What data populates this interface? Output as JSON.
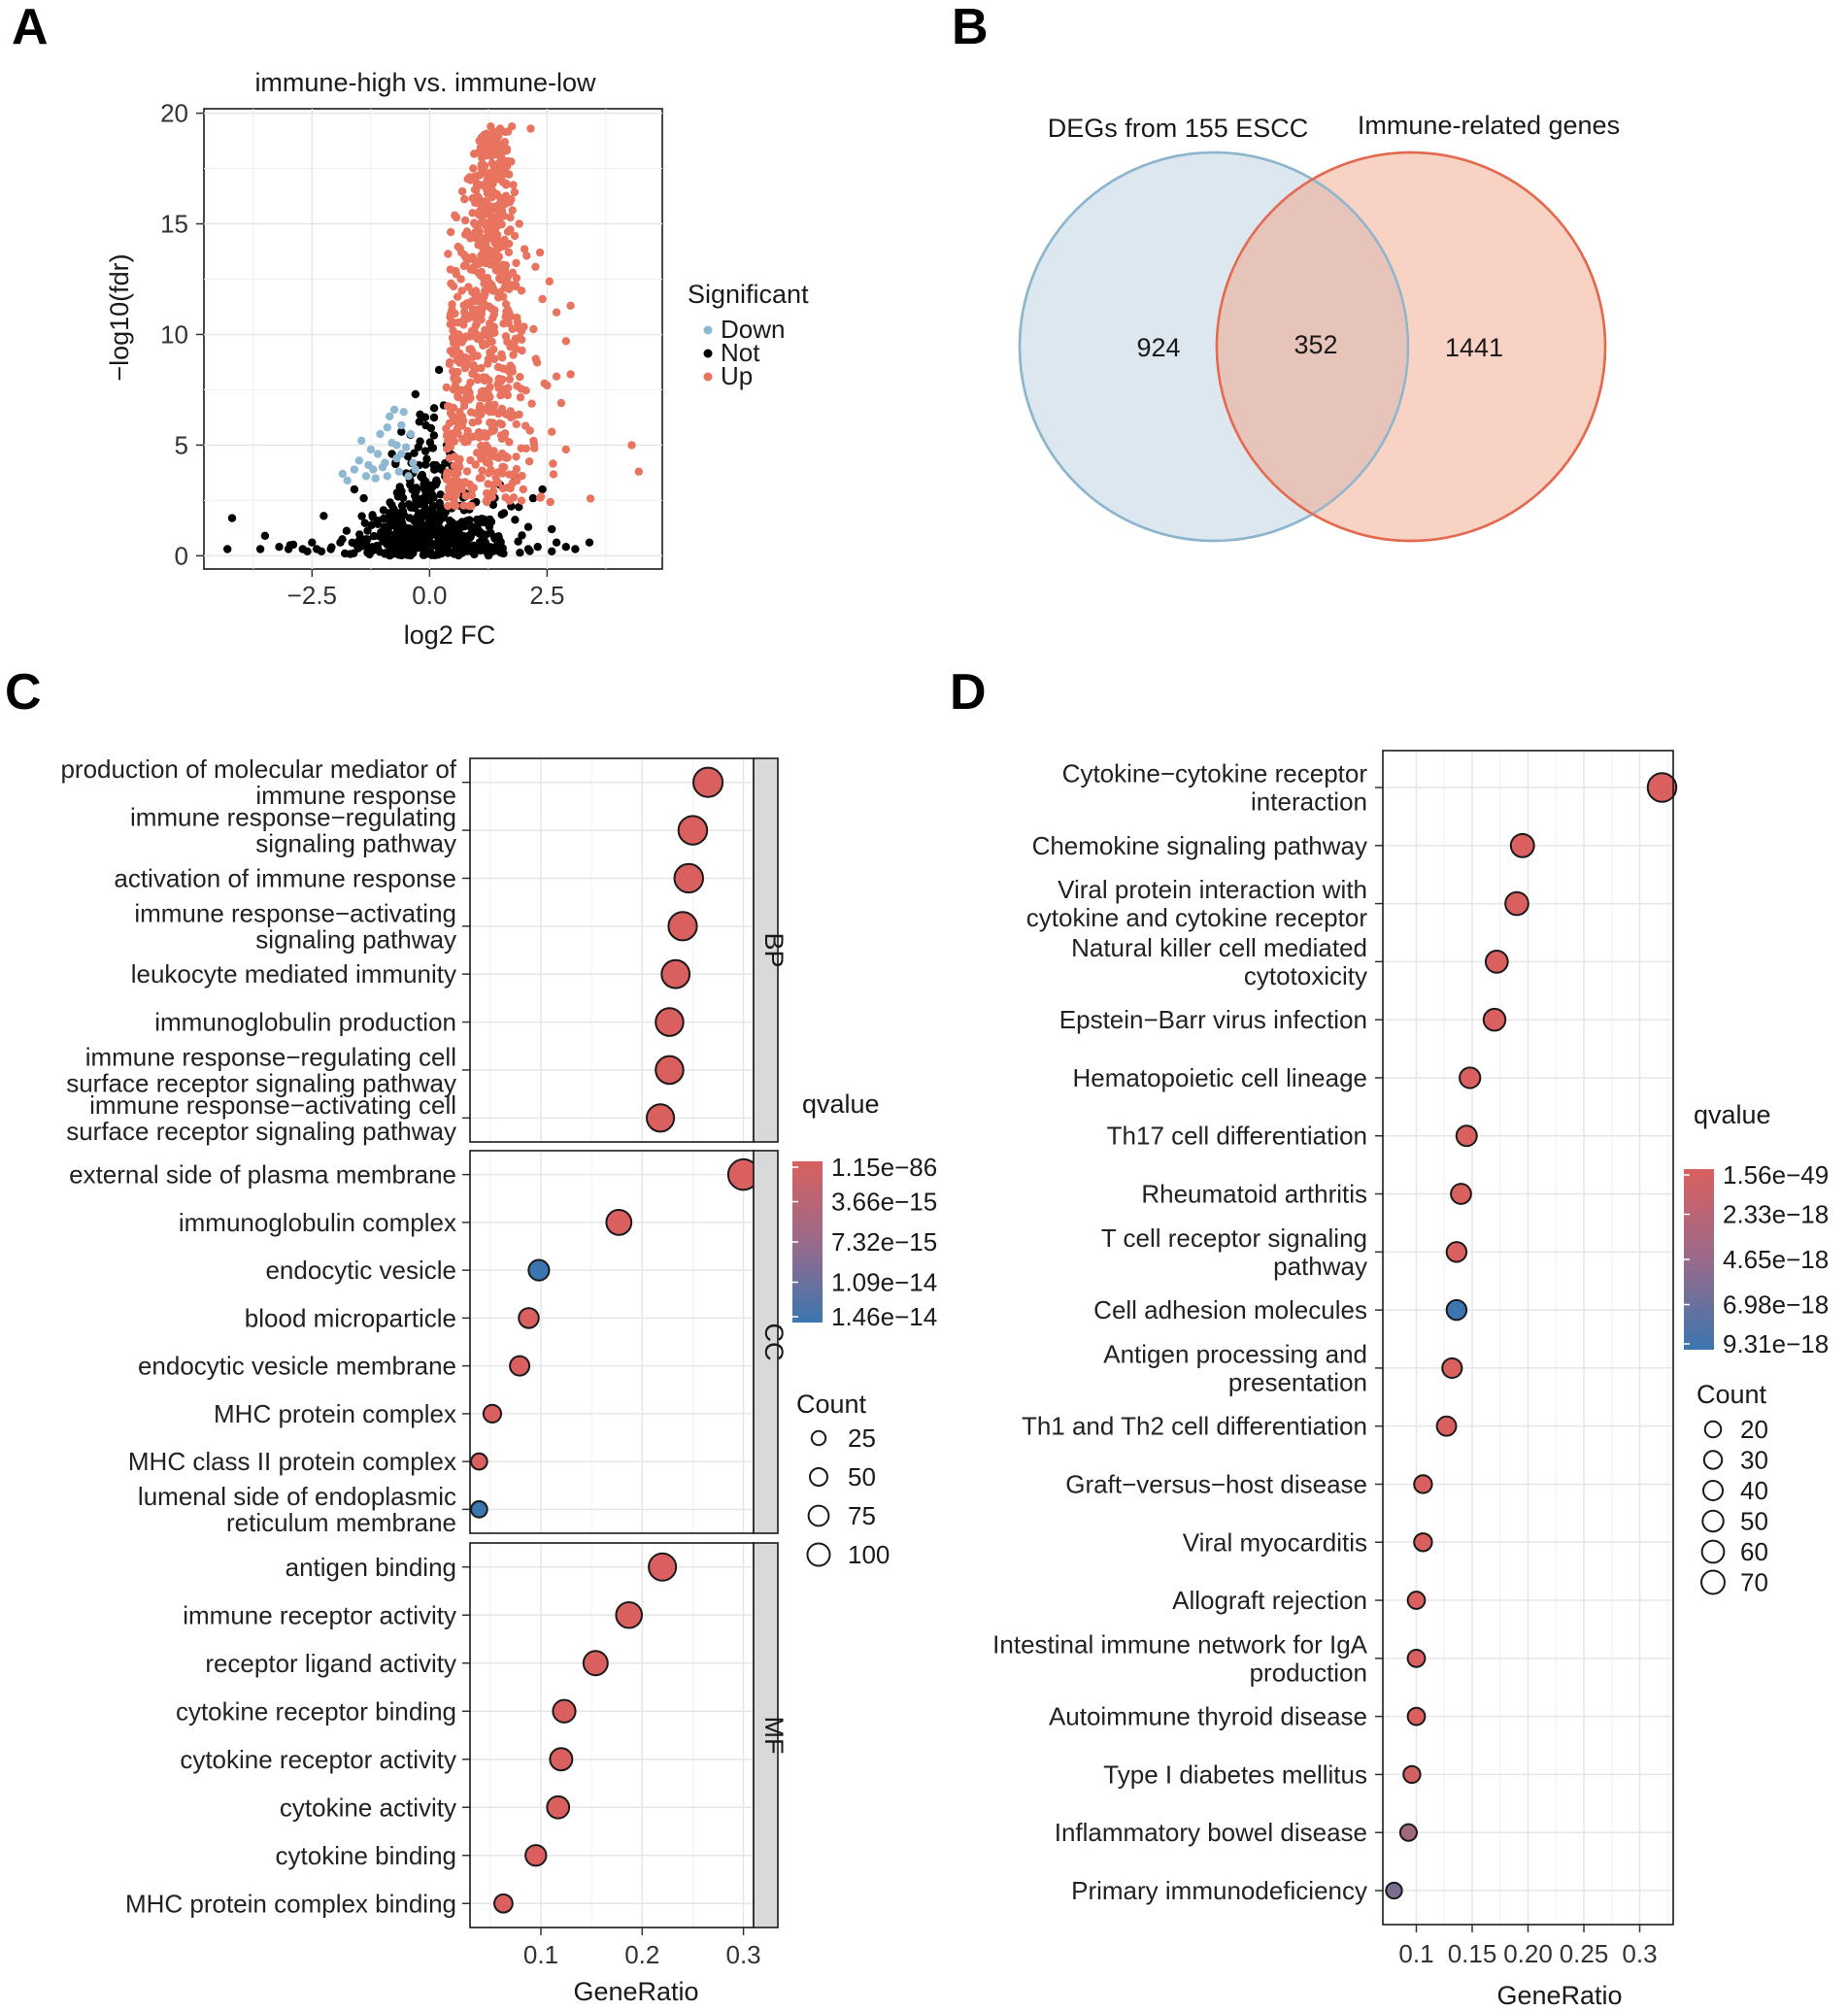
{
  "colors": {
    "up": "#E8735F",
    "down": "#8FB8D2",
    "not": "#000000",
    "q_high": "#D9605F",
    "q_low": "#3B76B0",
    "venn_left_fill": "#DCE7EF",
    "venn_left_stroke": "#8DB6CE",
    "venn_right_fill": "#F8D3C4",
    "venn_right_stroke": "#E3694F",
    "venn_overlap_fill": "#E6C4B9",
    "strip": "#D9D9D9",
    "grid": "#E6E6E6"
  },
  "panels": {
    "a": "A",
    "b": "B",
    "c": "C",
    "d": "D"
  },
  "chart_data": [
    {
      "id": "A",
      "type": "scatter",
      "title": "immune-high vs. immune-low",
      "xlabel": "log2 FC",
      "ylabel": "−log10(fdr)",
      "xlim": [
        -4.8,
        4.95
      ],
      "ylim": [
        -0.6,
        20.2
      ],
      "xticks": [
        -2.5,
        0.0,
        2.5
      ],
      "xtick_labels": [
        "−2.5",
        "0.0",
        "2.5"
      ],
      "yticks": [
        0,
        5,
        10,
        15,
        20
      ],
      "legend": {
        "title": "Significant",
        "entries": [
          "Down",
          "Not",
          "Up"
        ]
      },
      "series": [
        {
          "name": "Not",
          "points": [
            [
              -4.3,
              0.3
            ],
            [
              -4.2,
              1.7
            ],
            [
              -3.6,
              0.3
            ],
            [
              -3.5,
              0.9
            ],
            [
              -3.2,
              0.4
            ],
            [
              -3.0,
              0.3
            ],
            [
              -2.9,
              0.5
            ],
            [
              -2.7,
              0.3
            ],
            [
              -2.6,
              0.2
            ],
            [
              -2.5,
              0.6
            ],
            [
              -2.4,
              0.3
            ],
            [
              -2.3,
              0.2
            ],
            [
              -2.25,
              1.8
            ],
            [
              -2.1,
              0.3
            ],
            [
              -1.9,
              0.6
            ],
            [
              -1.8,
              0.1
            ],
            [
              2.1,
              0.3
            ],
            [
              2.3,
              0.4
            ],
            [
              2.6,
              0.2
            ],
            [
              2.7,
              0.6
            ],
            [
              2.9,
              0.4
            ],
            [
              3.1,
              0.3
            ],
            [
              3.4,
              0.6
            ],
            [
              2.4,
              3.0
            ],
            [
              2.2,
              2.6
            ],
            [
              1.8,
              3.6
            ],
            [
              1.5,
              3.2
            ],
            [
              1.9,
              2.2
            ],
            [
              2.1,
              1.3
            ],
            [
              2.6,
              1.2
            ],
            [
              -1.6,
              3.0
            ],
            [
              -1.4,
              2.6
            ],
            [
              -0.3,
              7.3
            ],
            [
              -0.6,
              5.6
            ],
            [
              -0.8,
              4.6
            ],
            [
              0.2,
              8.4
            ],
            [
              0.3,
              6.8
            ]
          ],
          "cloud": {
            "center": [
              0.05,
              1.2
            ],
            "spread": [
              0.75,
              1.6
            ],
            "count": 520
          }
        },
        {
          "name": "Down",
          "points": [
            [
              -1.85,
              3.7
            ],
            [
              -1.75,
              3.4
            ],
            [
              -1.6,
              3.9
            ],
            [
              -1.5,
              4.3
            ],
            [
              -1.35,
              3.6
            ],
            [
              -1.25,
              4.8
            ],
            [
              -1.2,
              3.9
            ],
            [
              -1.1,
              4.6
            ],
            [
              -1.05,
              5.5
            ],
            [
              -0.95,
              4.2
            ],
            [
              -0.9,
              3.6
            ],
            [
              -0.85,
              6.3
            ],
            [
              -0.8,
              5.1
            ],
            [
              -0.75,
              6.6
            ],
            [
              -0.7,
              4.4
            ],
            [
              -0.65,
              3.8
            ],
            [
              -0.6,
              5.9
            ],
            [
              -0.55,
              6.5
            ],
            [
              -0.5,
              4.9
            ],
            [
              -0.45,
              3.6
            ],
            [
              -0.4,
              5.5
            ],
            [
              -0.35,
              4.2
            ],
            [
              -0.3,
              3.9
            ],
            [
              -1.45,
              5.2
            ],
            [
              -1.0,
              4.0
            ],
            [
              -0.7,
              5.0
            ],
            [
              -1.3,
              4.1
            ],
            [
              -0.9,
              5.8
            ],
            [
              -0.6,
              4.6
            ],
            [
              -1.15,
              3.5
            ]
          ]
        },
        {
          "name": "Up",
          "points": [
            [
              4.3,
              5.0
            ],
            [
              4.45,
              3.8
            ],
            [
              1.3,
              19.4
            ],
            [
              1.5,
              19.3
            ],
            [
              2.15,
              19.3
            ],
            [
              1.75,
              19.4
            ],
            [
              1.2,
              18.8
            ],
            [
              1.6,
              18.7
            ],
            [
              2.4,
              11.6
            ],
            [
              2.7,
              11.0
            ],
            [
              2.9,
              9.7
            ],
            [
              3.0,
              8.2
            ],
            [
              2.8,
              6.9
            ],
            [
              2.6,
              5.6
            ],
            [
              2.9,
              4.8
            ],
            [
              2.35,
              13.7
            ],
            [
              2.55,
              12.4
            ],
            [
              2.5,
              7.7
            ],
            [
              2.7,
              8.1
            ],
            [
              3.0,
              11.3
            ]
          ],
          "cloud": {
            "center": [
              1.4,
              10.0
            ],
            "spread": [
              0.55,
              4.8
            ],
            "count": 760
          }
        }
      ]
    },
    {
      "id": "B",
      "type": "venn",
      "sets": [
        {
          "name": "DEGs from 155 ESCC",
          "only": "924"
        },
        {
          "name": "Immune-related genes",
          "only": "1441"
        }
      ],
      "intersection": "352"
    },
    {
      "id": "C",
      "type": "dot",
      "xlabel": "GeneRatio",
      "xlim": [
        0.03,
        0.31
      ],
      "xticks": [
        0.1,
        0.2,
        0.3
      ],
      "xtick_labels": [
        "0.1",
        "0.2",
        "0.3"
      ],
      "color_legend": {
        "title": "qvalue",
        "labels": [
          "1.15e−86",
          "3.66e−15",
          "7.32e−15",
          "1.09e−14",
          "1.46e−14"
        ]
      },
      "size_legend": {
        "title": "Count",
        "values": [
          25,
          50,
          75,
          100
        ],
        "labels": [
          "25",
          "50",
          "75",
          "100"
        ]
      },
      "facets": [
        {
          "name": "BP",
          "terms": [
            {
              "label": [
                "production of molecular mediator of",
                "immune response"
              ],
              "ratio": 0.265,
              "count": 85,
              "q": 0.0
            },
            {
              "label": [
                "immune response−regulating",
                "signaling pathway"
              ],
              "ratio": 0.25,
              "count": 80,
              "q": 0.0
            },
            {
              "label": [
                "activation of immune response"
              ],
              "ratio": 0.246,
              "count": 80,
              "q": 0.0
            },
            {
              "label": [
                "immune response−activating",
                "signaling pathway"
              ],
              "ratio": 0.24,
              "count": 78,
              "q": 0.0
            },
            {
              "label": [
                "leukocyte mediated immunity"
              ],
              "ratio": 0.233,
              "count": 75,
              "q": 0.0
            },
            {
              "label": [
                "immunoglobulin production"
              ],
              "ratio": 0.227,
              "count": 73,
              "q": 0.0
            },
            {
              "label": [
                "immune response−regulating cell",
                "surface receptor signaling pathway"
              ],
              "ratio": 0.227,
              "count": 73,
              "q": 0.0
            },
            {
              "label": [
                "immune response−activating cell",
                "surface receptor signaling pathway"
              ],
              "ratio": 0.218,
              "count": 70,
              "q": 0.0
            }
          ]
        },
        {
          "name": "CC",
          "terms": [
            {
              "label": [
                "external side of plasma membrane"
              ],
              "ratio": 0.3,
              "count": 95,
              "q": 0.0
            },
            {
              "label": [
                "immunoglobulin complex"
              ],
              "ratio": 0.177,
              "count": 55,
              "q": 0.0
            },
            {
              "label": [
                "endocytic vesicle"
              ],
              "ratio": 0.098,
              "count": 30,
              "q": 1.0
            },
            {
              "label": [
                "blood microparticle"
              ],
              "ratio": 0.088,
              "count": 27,
              "q": 0.0
            },
            {
              "label": [
                "endocytic vesicle membrane"
              ],
              "ratio": 0.079,
              "count": 25,
              "q": 0.0
            },
            {
              "label": [
                "MHC protein complex"
              ],
              "ratio": 0.052,
              "count": 18,
              "q": 0.0
            },
            {
              "label": [
                "MHC class II protein complex"
              ],
              "ratio": 0.039,
              "count": 13,
              "q": 0.0
            },
            {
              "label": [
                "lumenal side of endoplasmic",
                "reticulum membrane"
              ],
              "ratio": 0.039,
              "count": 13,
              "q": 1.0
            }
          ]
        },
        {
          "name": "MF",
          "terms": [
            {
              "label": [
                "antigen binding"
              ],
              "ratio": 0.22,
              "count": 70,
              "q": 0.0
            },
            {
              "label": [
                "immune receptor activity"
              ],
              "ratio": 0.187,
              "count": 60,
              "q": 0.0
            },
            {
              "label": [
                "receptor ligand activity"
              ],
              "ratio": 0.154,
              "count": 50,
              "q": 0.0
            },
            {
              "label": [
                "cytokine receptor binding"
              ],
              "ratio": 0.123,
              "count": 40,
              "q": 0.0
            },
            {
              "label": [
                "cytokine receptor activity"
              ],
              "ratio": 0.12,
              "count": 39,
              "q": 0.0
            },
            {
              "label": [
                "cytokine activity"
              ],
              "ratio": 0.117,
              "count": 38,
              "q": 0.0
            },
            {
              "label": [
                "cytokine binding"
              ],
              "ratio": 0.095,
              "count": 31,
              "q": 0.0
            },
            {
              "label": [
                "MHC protein complex binding"
              ],
              "ratio": 0.063,
              "count": 20,
              "q": 0.0
            }
          ]
        }
      ]
    },
    {
      "id": "D",
      "type": "dot",
      "xlabel": "GeneRatio",
      "xlim": [
        0.07,
        0.33
      ],
      "xticks": [
        0.1,
        0.15,
        0.2,
        0.25,
        0.3
      ],
      "xtick_labels": [
        "0.1",
        "0.15",
        "0.20",
        "0.25",
        "0.3"
      ],
      "color_legend": {
        "title": "qvalue",
        "labels": [
          "1.56e−49",
          "2.33e−18",
          "4.65e−18",
          "6.98e−18",
          "9.31e−18"
        ]
      },
      "size_legend": {
        "title": "Count",
        "values": [
          20,
          30,
          40,
          50,
          60,
          70
        ],
        "labels": [
          "20",
          "30",
          "40",
          "50",
          "60",
          "70"
        ]
      },
      "terms": [
        {
          "label": [
            "Cytokine−cytokine receptor",
            "interaction"
          ],
          "ratio": 0.32,
          "count": 72,
          "q": 0.0
        },
        {
          "label": [
            "Chemokine signaling pathway"
          ],
          "ratio": 0.195,
          "count": 44,
          "q": 0.0
        },
        {
          "label": [
            "Viral protein interaction with",
            "cytokine and cytokine receptor"
          ],
          "ratio": 0.19,
          "count": 43,
          "q": 0.0
        },
        {
          "label": [
            "Natural killer cell mediated",
            "cytotoxicity"
          ],
          "ratio": 0.172,
          "count": 39,
          "q": 0.0
        },
        {
          "label": [
            "Epstein−Barr virus infection"
          ],
          "ratio": 0.17,
          "count": 38,
          "q": 0.0
        },
        {
          "label": [
            "Hematopoietic cell lineage"
          ],
          "ratio": 0.148,
          "count": 33,
          "q": 0.0
        },
        {
          "label": [
            "Th17 cell differentiation"
          ],
          "ratio": 0.145,
          "count": 32,
          "q": 0.0
        },
        {
          "label": [
            "Rheumatoid arthritis"
          ],
          "ratio": 0.14,
          "count": 31,
          "q": 0.0
        },
        {
          "label": [
            "T cell receptor signaling",
            "pathway"
          ],
          "ratio": 0.136,
          "count": 30,
          "q": 0.0
        },
        {
          "label": [
            "Cell adhesion molecules"
          ],
          "ratio": 0.136,
          "count": 30,
          "q": 1.0
        },
        {
          "label": [
            "Antigen processing and",
            "presentation"
          ],
          "ratio": 0.132,
          "count": 29,
          "q": 0.0
        },
        {
          "label": [
            "Th1 and Th2 cell differentiation"
          ],
          "ratio": 0.127,
          "count": 28,
          "q": 0.0
        },
        {
          "label": [
            "Graft−versus−host disease"
          ],
          "ratio": 0.106,
          "count": 23,
          "q": 0.0
        },
        {
          "label": [
            "Viral myocarditis"
          ],
          "ratio": 0.106,
          "count": 23,
          "q": 0.0
        },
        {
          "label": [
            "Allograft rejection"
          ],
          "ratio": 0.1,
          "count": 21,
          "q": 0.0
        },
        {
          "label": [
            "Intestinal immune network for IgA",
            "production"
          ],
          "ratio": 0.1,
          "count": 21,
          "q": 0.0
        },
        {
          "label": [
            "Autoimmune thyroid disease"
          ],
          "ratio": 0.1,
          "count": 21,
          "q": 0.0
        },
        {
          "label": [
            "Type I diabetes mellitus"
          ],
          "ratio": 0.096,
          "count": 20,
          "q": 0.05
        },
        {
          "label": [
            "Inflammatory bowel disease"
          ],
          "ratio": 0.093,
          "count": 19,
          "q": 0.35
        },
        {
          "label": [
            "Primary immunodeficiency"
          ],
          "ratio": 0.08,
          "count": 17,
          "q": 0.6
        }
      ]
    }
  ]
}
